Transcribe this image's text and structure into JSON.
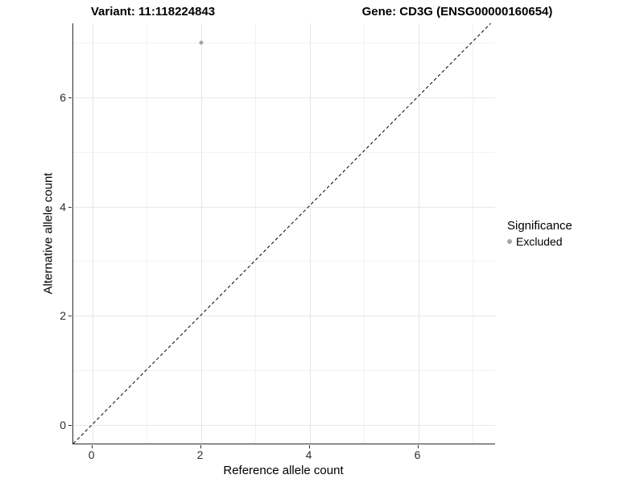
{
  "chart_data": {
    "type": "scatter",
    "title_left": "Variant: 11:118224843",
    "title_right": "Gene: CD3G (ENSG00000160654)",
    "xlabel": "Reference allele count",
    "ylabel": "Alternative allele count",
    "xlim": [
      -0.35,
      7.43
    ],
    "ylim": [
      -0.35,
      7.35
    ],
    "x_major_ticks": [
      0,
      2,
      4,
      6
    ],
    "y_major_ticks": [
      0,
      2,
      4,
      6
    ],
    "x_minor_gridlines": [
      1,
      3,
      5,
      7
    ],
    "y_minor_gridlines": [
      1,
      3,
      5,
      7
    ],
    "grid": true,
    "legend_position": "right",
    "series": [
      {
        "name": "Excluded",
        "color": "#a6a6a6",
        "marker": "circle",
        "points": [
          {
            "x": 2,
            "y": 7
          }
        ]
      }
    ],
    "reference_line": {
      "kind": "identity",
      "slope": 1,
      "intercept": 0,
      "style": "dashed",
      "color": "#000000"
    },
    "legend": {
      "title": "Significance",
      "entries": [
        {
          "label": "Excluded",
          "color": "#a6a6a6",
          "marker": "circle"
        }
      ]
    },
    "colors": {
      "background": "#ffffff",
      "gridline_major": "#e7e7e7",
      "gridline_minor": "#f2f2f2",
      "axis_line": "#2b2b2b",
      "tick_text": "#2e2e2e"
    }
  }
}
